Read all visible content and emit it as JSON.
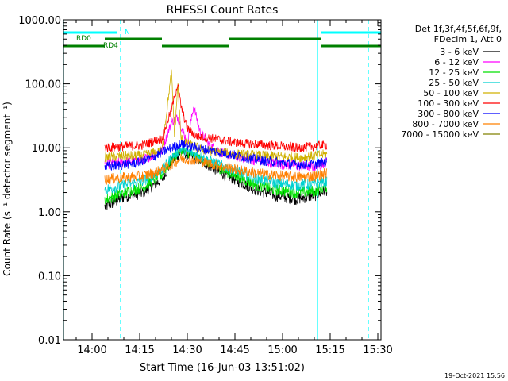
{
  "chart_data": {
    "type": "line",
    "title": "RHESSI Count Rates",
    "xlabel": "Start Time (16-Jun-03 13:51:02)",
    "ylabel": "Count Rate (s⁻¹ detector segment⁻¹)",
    "yscale": "log",
    "ylim": [
      0.01,
      1000
    ],
    "xlim": [
      "13:51",
      "15:31"
    ],
    "x_tick_labels": [
      "14:00",
      "14:15",
      "14:30",
      "14:45",
      "15:00",
      "15:15",
      "15:30"
    ],
    "y_tick_labels": [
      "0.01",
      "0.10",
      "1.00",
      "10.00",
      "100.00",
      "1000.00"
    ],
    "legend_header": [
      "Det 1f,3f,4f,5f,6f,9f,",
      "FDecim 1, Att 0"
    ],
    "legend_position": "right",
    "data_window": [
      "14:04",
      "15:14"
    ],
    "series": [
      {
        "name": "3 - 6 keV",
        "color": "#000000",
        "x": [
          "14:04",
          "14:10",
          "14:16",
          "14:22",
          "14:25",
          "14:28",
          "14:31",
          "14:35",
          "14:40",
          "14:46",
          "14:52",
          "14:58",
          "15:04",
          "15:10",
          "15:14"
        ],
        "y": [
          1.2,
          1.7,
          2.0,
          3.2,
          6.0,
          8.5,
          7.5,
          6.0,
          4.2,
          3.0,
          2.2,
          1.8,
          1.6,
          1.8,
          2.2
        ]
      },
      {
        "name": "6 - 12 keV",
        "color": "#ff00ff",
        "x": [
          "14:04",
          "14:10",
          "14:16",
          "14:22",
          "14:25",
          "14:27",
          "14:30",
          "14:32",
          "14:34",
          "14:37",
          "14:42",
          "14:50",
          "15:00",
          "15:10",
          "15:14"
        ],
        "y": [
          5.5,
          6.0,
          6.5,
          9.0,
          25.0,
          30.0,
          12.0,
          45.0,
          18.0,
          11.0,
          8.0,
          6.5,
          5.5,
          5.0,
          6.0
        ]
      },
      {
        "name": "12 - 25 keV",
        "color": "#00e000",
        "x": [
          "14:04",
          "14:10",
          "14:16",
          "14:22",
          "14:25",
          "14:28",
          "14:31",
          "14:35",
          "14:40",
          "14:46",
          "14:52",
          "14:58",
          "15:04",
          "15:10",
          "15:14"
        ],
        "y": [
          1.5,
          2.0,
          2.4,
          3.8,
          6.5,
          9.0,
          8.0,
          6.5,
          4.8,
          3.5,
          2.6,
          2.2,
          2.0,
          2.1,
          2.5
        ]
      },
      {
        "name": "25 - 50 keV",
        "color": "#00d0d0",
        "x": [
          "14:04",
          "14:10",
          "14:16",
          "14:22",
          "14:25",
          "14:28",
          "14:31",
          "14:35",
          "14:40",
          "14:46",
          "14:52",
          "14:58",
          "15:04",
          "15:10",
          "15:14"
        ],
        "y": [
          2.2,
          2.6,
          3.0,
          4.5,
          7.0,
          9.5,
          8.5,
          7.0,
          5.5,
          4.2,
          3.3,
          2.8,
          2.6,
          2.7,
          3.0
        ]
      },
      {
        "name": "50 - 100 keV",
        "color": "#d0b000",
        "x": [
          "14:04",
          "14:10",
          "14:16",
          "14:22",
          "14:25",
          "14:26",
          "14:27",
          "14:28",
          "14:31",
          "14:36",
          "14:45",
          "14:55",
          "15:05",
          "15:14"
        ],
        "y": [
          7.0,
          7.5,
          7.5,
          9.0,
          150.0,
          15.0,
          100.0,
          14.0,
          11.0,
          9.0,
          8.0,
          7.5,
          7.0,
          8.0
        ]
      },
      {
        "name": "100 - 300 keV",
        "color": "#ff0000",
        "x": [
          "14:04",
          "14:10",
          "14:16",
          "14:22",
          "14:25",
          "14:27",
          "14:28",
          "14:30",
          "14:33",
          "14:38",
          "14:45",
          "14:55",
          "15:05",
          "15:14"
        ],
        "y": [
          10.0,
          10.5,
          11.0,
          14.0,
          40.0,
          100.0,
          45.0,
          20.0,
          15.0,
          14.0,
          12.0,
          11.0,
          10.0,
          11.0
        ]
      },
      {
        "name": "300 - 800 keV",
        "color": "#0000ff",
        "x": [
          "14:04",
          "14:10",
          "14:16",
          "14:22",
          "14:25",
          "14:28",
          "14:31",
          "14:35",
          "14:40",
          "14:46",
          "14:52",
          "14:58",
          "15:04",
          "15:10",
          "15:14"
        ],
        "y": [
          5.0,
          5.5,
          6.0,
          8.5,
          10.0,
          11.5,
          10.5,
          9.5,
          8.5,
          7.5,
          6.5,
          6.0,
          5.5,
          5.5,
          6.0
        ]
      },
      {
        "name": "800 - 7000 keV",
        "color": "#ff8000",
        "x": [
          "14:04",
          "14:10",
          "14:16",
          "14:22",
          "14:25",
          "14:28",
          "14:31",
          "14:35",
          "14:40",
          "14:46",
          "14:52",
          "14:58",
          "15:04",
          "15:10",
          "15:14"
        ],
        "y": [
          3.2,
          3.4,
          3.6,
          4.5,
          5.5,
          6.8,
          6.5,
          6.0,
          5.2,
          4.5,
          4.0,
          3.7,
          3.5,
          3.6,
          4.0
        ]
      },
      {
        "name": "7000 - 15000 keV",
        "color": "#808000",
        "x": [],
        "y": []
      }
    ],
    "attenuator_state_bars": [
      {
        "label": "N",
        "color": "#00ffff",
        "segments": [
          [
            "13:51",
            "14:08"
          ],
          [
            "15:12",
            "15:31"
          ]
        ]
      },
      {
        "label": "RD0",
        "color": "#008000",
        "segments": [
          [
            "14:04",
            "14:22"
          ],
          [
            "14:43",
            "15:12"
          ]
        ]
      },
      {
        "label": "RD4",
        "color": "#008000",
        "segments": [
          [
            "13:51",
            "14:04"
          ],
          [
            "14:22",
            "14:43"
          ],
          [
            "15:12",
            "15:31"
          ]
        ]
      }
    ],
    "vertical_markers": [
      {
        "x": "14:09",
        "style": "dashed",
        "color": "#00ffff"
      },
      {
        "x": "15:11",
        "style": "solid",
        "color": "#00ffff"
      },
      {
        "x": "15:27",
        "style": "dashed",
        "color": "#00ffff"
      },
      {
        "x": "13:51",
        "style": "solid",
        "color": "#00ffff"
      }
    ]
  },
  "footer": {
    "date_stamp": "19-Oct-2021 15:56"
  }
}
